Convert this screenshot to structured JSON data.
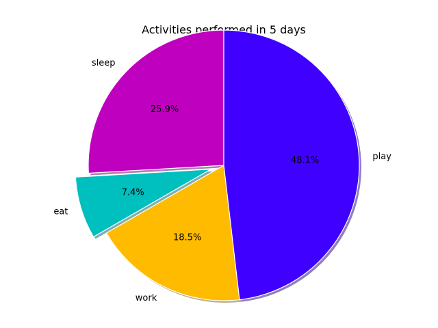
{
  "chart_data": {
    "type": "pie",
    "title": "Activities performed in 5 days",
    "slices": [
      {
        "label": "sleep",
        "value": 7,
        "percent_label": "25.9%",
        "color": "#bf00bf",
        "exploded": false
      },
      {
        "label": "eat",
        "value": 2,
        "percent_label": "7.4%",
        "color": "#00bfbf",
        "exploded": true
      },
      {
        "label": "work",
        "value": 5,
        "percent_label": "18.5%",
        "color": "#ffbb00",
        "exploded": false
      },
      {
        "label": "play",
        "value": 13,
        "percent_label": "48.1%",
        "color": "#4000ff",
        "exploded": false
      }
    ],
    "start_angle_deg": 90,
    "direction": "counterclockwise",
    "shadow": true,
    "legend": false
  }
}
